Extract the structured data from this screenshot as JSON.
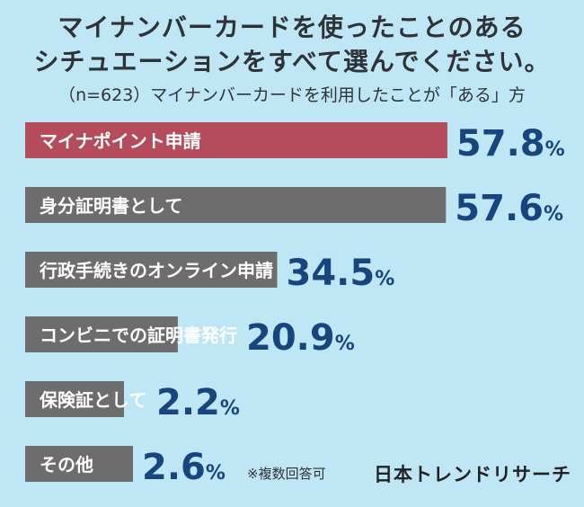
{
  "header": {
    "title_line1": "マイナンバーカードを使ったことのある",
    "title_line2": "シチュエーションをすべて選んでください。",
    "subtitle": "（n=623）マイナンバーカードを利用したことが「ある」方"
  },
  "chart_data": {
    "type": "bar",
    "orientation": "horizontal",
    "categories": [
      "マイナポイント申請",
      "身分証明書として",
      "行政手続きのオンライン申請",
      "コンビニでの証明書発行",
      "保険証として",
      "その他"
    ],
    "values": [
      57.8,
      57.6,
      34.5,
      20.9,
      2.2,
      2.6
    ],
    "value_suffix": "%",
    "highlight_index": 0,
    "colors": {
      "highlight": "#b54c5b",
      "default": "#6d6d6d",
      "value": "#17467e"
    },
    "xlim": [
      0,
      60
    ]
  },
  "footer": {
    "note": "※複数回答可",
    "brand": "日本トレンドリサーチ"
  }
}
